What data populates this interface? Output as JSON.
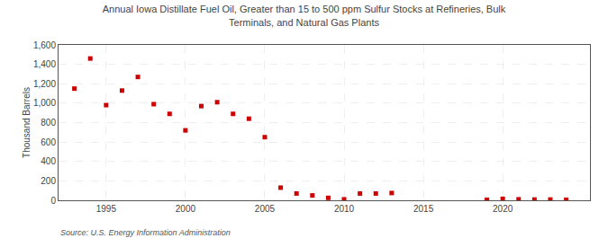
{
  "chart_data": {
    "type": "scatter",
    "title": "Annual Iowa Distillate Fuel Oil, Greater than 15 to 500 ppm Sulfur Stocks at Refineries, Bulk\nTerminals, and Natural Gas Plants",
    "ylabel": "Thousand Barrels",
    "annotations": [
      "Source: U.S. Energy Information Administration"
    ],
    "x": [
      1993,
      1994,
      1995,
      1996,
      1997,
      1998,
      1999,
      2000,
      2001,
      2002,
      2003,
      2004,
      2005,
      2006,
      2007,
      2008,
      2009,
      2010,
      2011,
      2012,
      2013,
      2019,
      2020,
      2021,
      2022,
      2023,
      2024
    ],
    "values": [
      1150,
      1460,
      980,
      1130,
      1270,
      990,
      890,
      720,
      970,
      1010,
      890,
      840,
      650,
      130,
      70,
      50,
      25,
      10,
      70,
      70,
      75,
      5,
      15,
      10,
      8,
      8,
      5
    ],
    "color": "#cc0000",
    "marker": "square",
    "xlim": [
      1992,
      2025.5
    ],
    "xticks": [
      1995,
      2000,
      2005,
      2010,
      2015,
      2020
    ],
    "ylim": [
      0,
      1600
    ],
    "yticks": [
      0,
      200,
      400,
      600,
      800,
      {
        "value": 1000,
        "label": "1,000"
      },
      {
        "value": 1200,
        "label": "1,200"
      },
      {
        "value": 1400,
        "label": "1,400"
      },
      {
        "value": 1600,
        "label": "1,600"
      }
    ],
    "grid": true
  }
}
